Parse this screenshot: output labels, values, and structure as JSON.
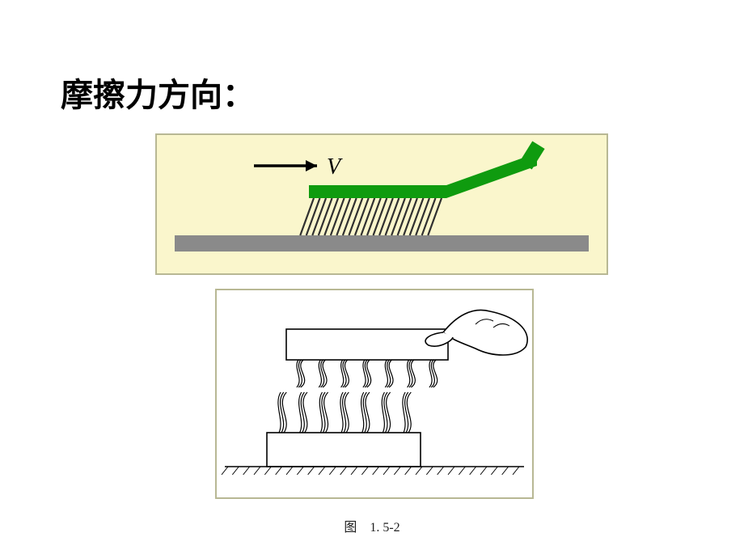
{
  "title": {
    "text": "摩擦力方向：",
    "fontsize": 40,
    "color": "#000000"
  },
  "figure1": {
    "type": "diagram",
    "background_color": "#faf6cc",
    "border_color": "#b8b894",
    "surface_color": "#8a8a8a",
    "brush_head_color": "#0f9b0f",
    "brush_handle_color": "#0f9b0f",
    "bristle_color": "#303030",
    "bristle_count": 22,
    "bristle_skew_deg": 20,
    "arrow_label": "V",
    "arrow_label_fontsize": 28,
    "arrow_label_style": "italic",
    "arrow_color": "#000000",
    "label_color": "#000000"
  },
  "figure2": {
    "type": "diagram",
    "border_color": "#b8b894",
    "line_color": "#000000",
    "ground_hatch_count": 28,
    "bristle_rows": 2,
    "bristle_bundles_per_row": 7
  },
  "caption": {
    "text": "图　1. 5-2",
    "fontsize": 16,
    "color": "#222222"
  }
}
